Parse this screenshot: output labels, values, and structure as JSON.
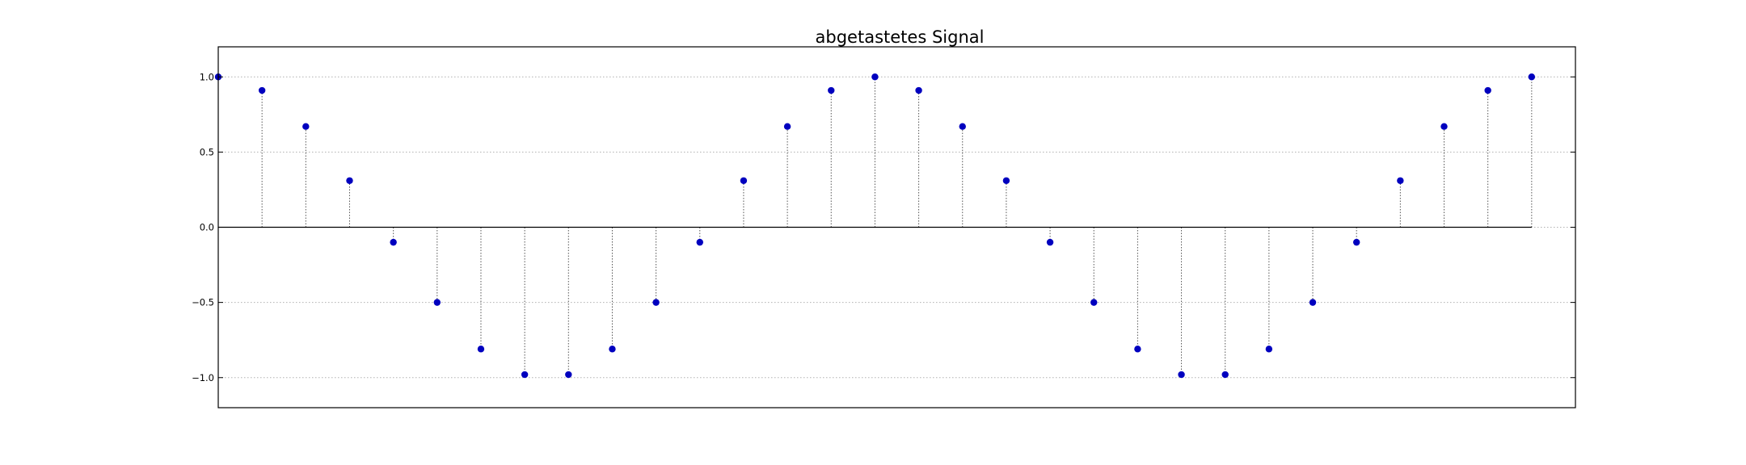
{
  "chart_data": {
    "type": "stem",
    "title": "abgetastetes Signal",
    "xlabel": "",
    "ylabel": "",
    "x": [
      0,
      1,
      2,
      3,
      4,
      5,
      6,
      7,
      8,
      9,
      10,
      11,
      12,
      13,
      14,
      15,
      16,
      17,
      18,
      19,
      20,
      21,
      22,
      23,
      24,
      25,
      26,
      27,
      28,
      29,
      30
    ],
    "y": [
      1.0,
      0.91,
      0.67,
      0.31,
      -0.1,
      -0.5,
      -0.81,
      -0.98,
      -0.98,
      -0.81,
      -0.5,
      -0.1,
      0.31,
      0.67,
      0.91,
      1.0,
      0.91,
      0.67,
      0.31,
      -0.1,
      -0.5,
      -0.81,
      -0.98,
      -0.98,
      -0.81,
      -0.5,
      -0.1,
      0.31,
      0.67,
      0.91,
      1.0
    ],
    "xlim": [
      0,
      31
    ],
    "ylim": [
      -1.2,
      1.2
    ],
    "yticks": [
      1.0,
      0.5,
      0.0,
      -0.5,
      -1.0
    ],
    "ytick_labels": [
      "1.0",
      "0.5",
      "0.0",
      "−0.5",
      "−1.0"
    ],
    "xticks_visible": false,
    "grid": true,
    "grid_style": "dotted",
    "baseline": 0.0,
    "marker_color": "#0000bf",
    "stem_color": "#555555",
    "baseline_color": "#000000",
    "grid_color": "#b0b0b0"
  }
}
